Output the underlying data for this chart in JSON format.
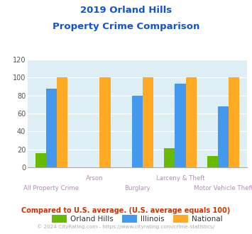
{
  "title_line1": "2019 Orland Hills",
  "title_line2": "Property Crime Comparison",
  "categories": [
    "All Property Crime",
    "Arson",
    "Burglary",
    "Larceny & Theft",
    "Motor Vehicle Theft"
  ],
  "series": {
    "Orland Hills": [
      16,
      0,
      0,
      21,
      13
    ],
    "Illinois": [
      88,
      0,
      80,
      93,
      68
    ],
    "National": [
      100,
      100,
      100,
      100,
      100
    ]
  },
  "colors": {
    "Orland Hills": "#66bb00",
    "Illinois": "#4499ee",
    "National": "#ffaa22"
  },
  "ylim": [
    0,
    120
  ],
  "yticks": [
    0,
    20,
    40,
    60,
    80,
    100,
    120
  ],
  "xlabel_color": "#bb88bb",
  "title_color": "#1155cc",
  "bg_color": "#ddeef5",
  "grid_color": "#ffffff",
  "footnote1": "Compared to U.S. average. (U.S. average equals 100)",
  "footnote2": "© 2024 CityRating.com - https://www.cityrating.com/crime-statistics/",
  "footnote1_color": "#cc3300",
  "footnote2_color": "#aaaaaa",
  "bar_width": 0.25,
  "figsize": [
    3.55,
    3.3
  ],
  "dpi": 100
}
